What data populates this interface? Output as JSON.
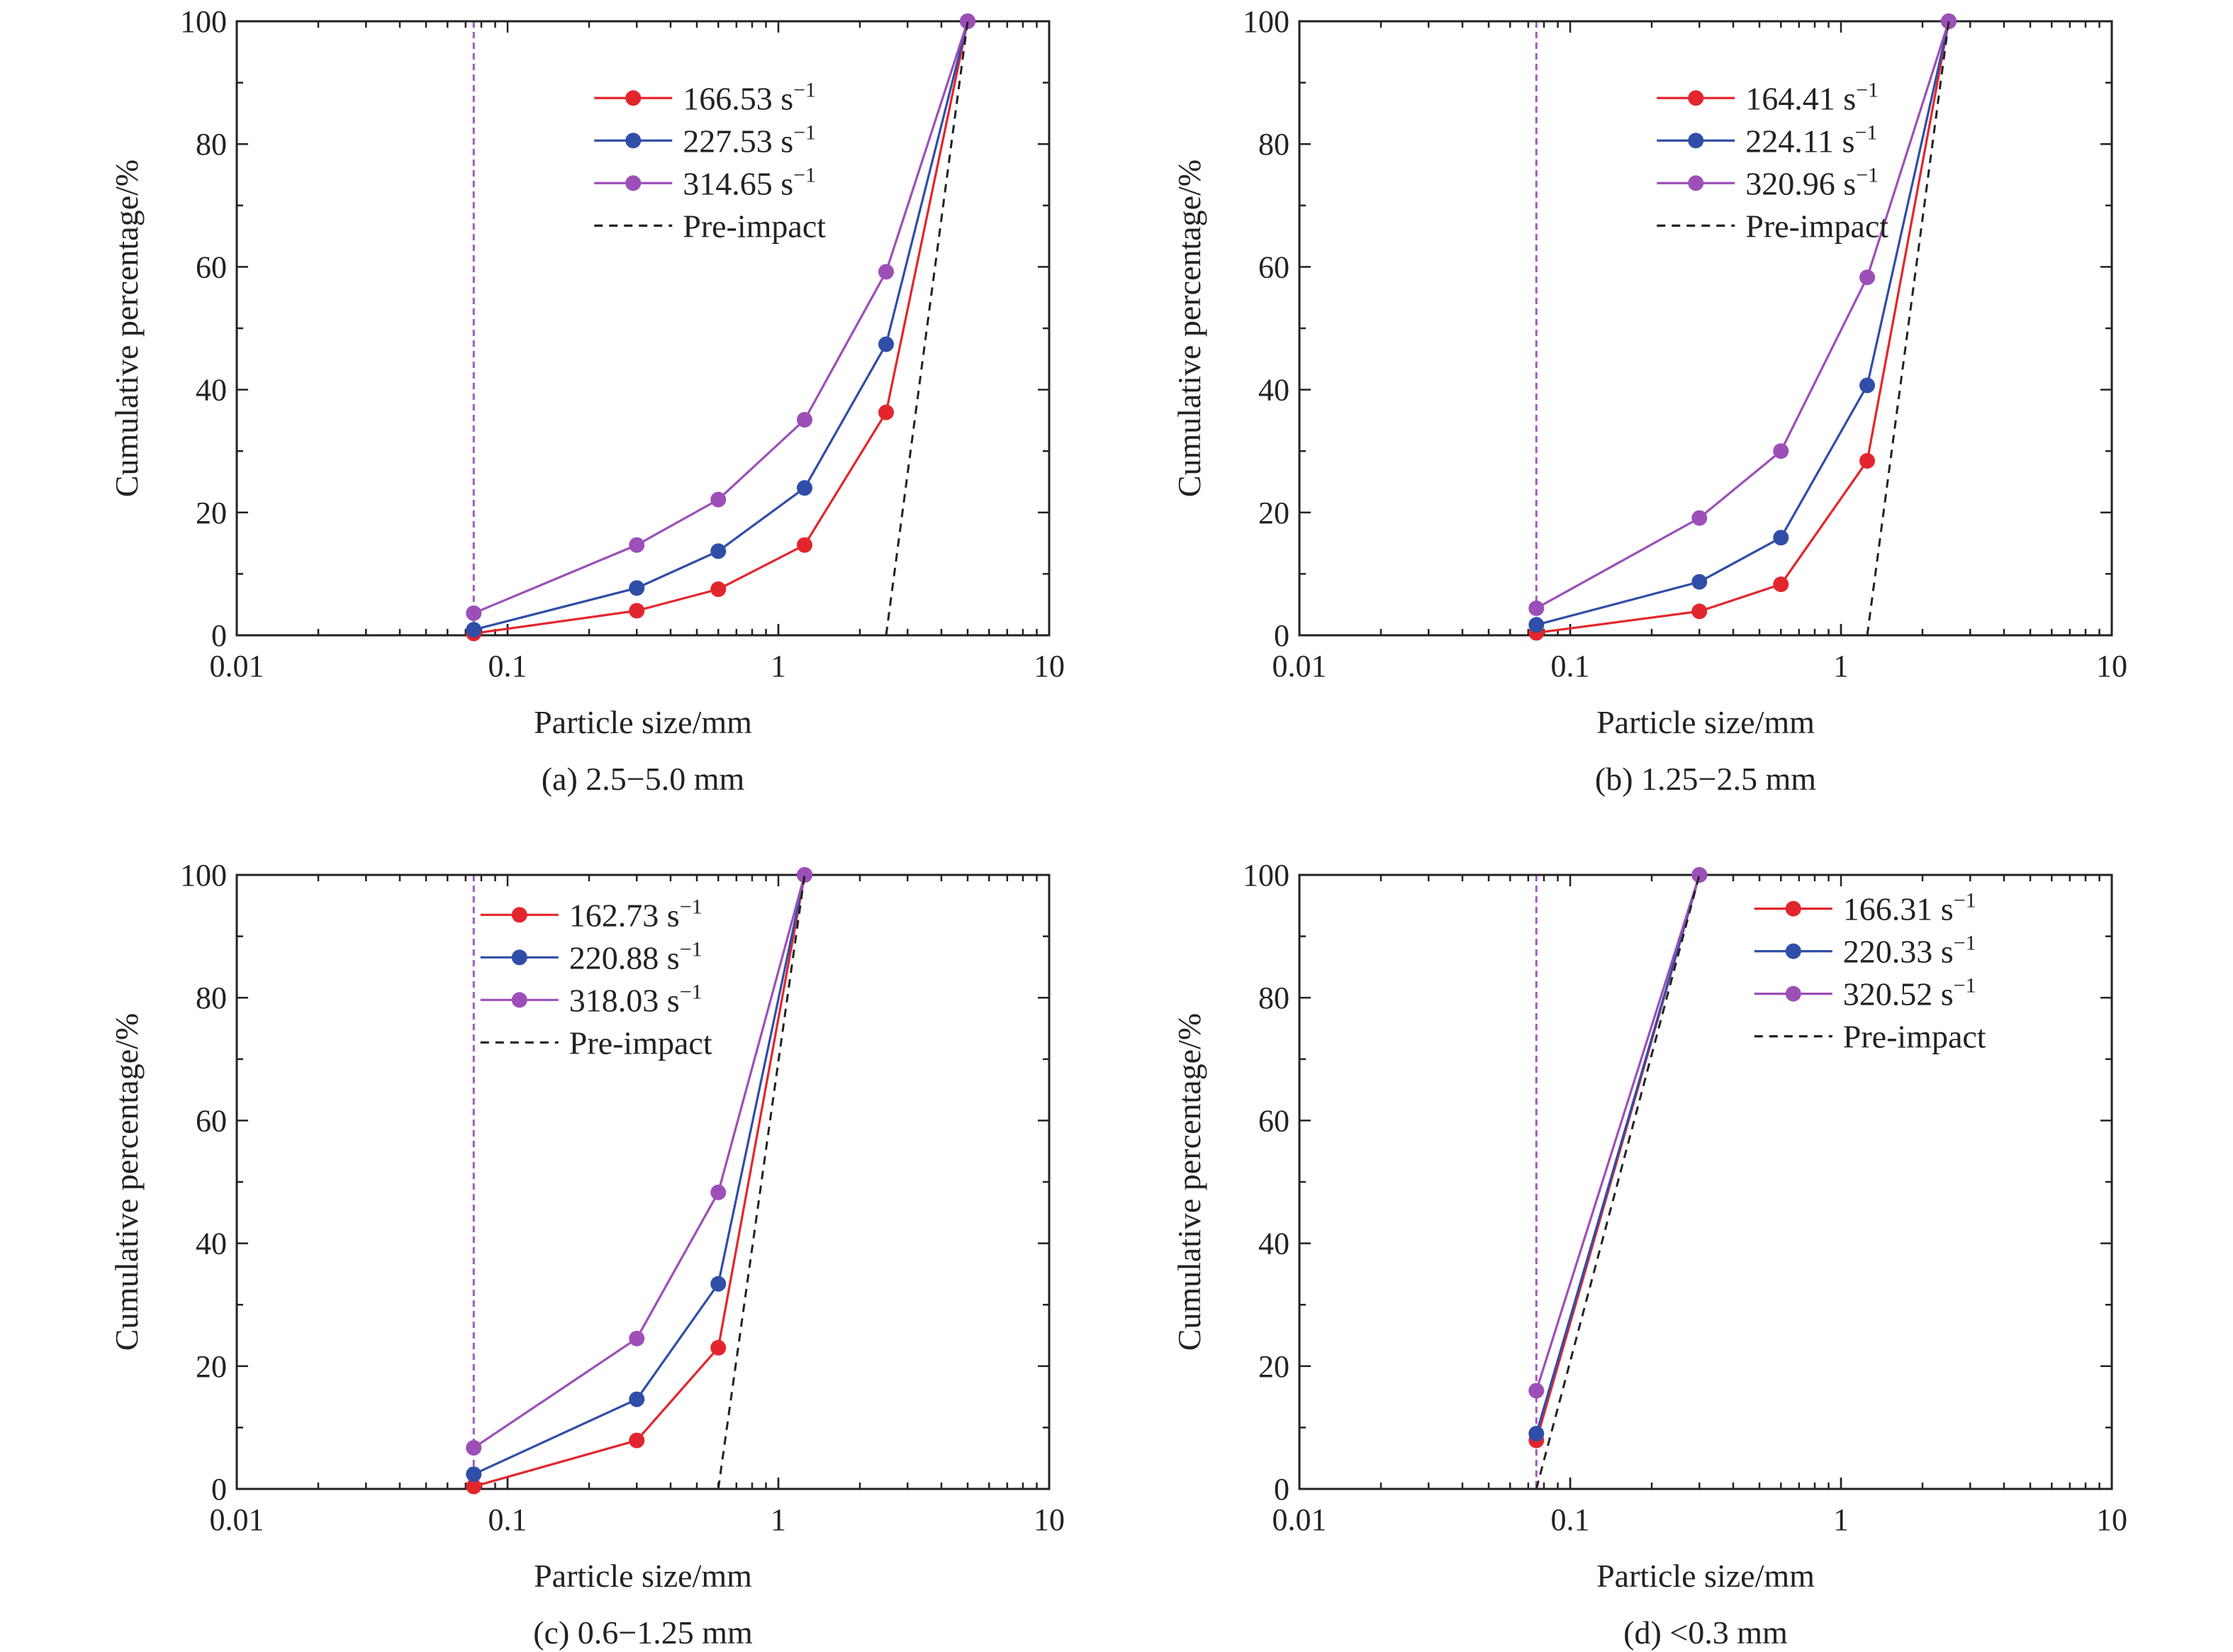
{
  "colors": {
    "red": "#e3262d",
    "blue": "#2f4ea8",
    "purple": "#9d4fb8",
    "preimpact": "#222222",
    "guide": "#a757c5",
    "axis": "#222222"
  },
  "chart_data": [
    {
      "type": "line",
      "caption": "(a) 2.5−5.0 mm",
      "xlabel": "Particle size/mm",
      "ylabel": "Cumulative percentage/%",
      "xscale": "log",
      "xlim": [
        0.01,
        10
      ],
      "ylim": [
        0,
        100
      ],
      "xticks": [
        "0.01",
        "0.1",
        "1",
        "10"
      ],
      "yticks": [
        "0",
        "20",
        "40",
        "60",
        "80",
        "100"
      ],
      "legend_position": "top-center",
      "series": [
        {
          "name": "166.53 s",
          "unit_exp": "−1",
          "color": "red",
          "x": [
            0.075,
            0.3,
            0.6,
            1.25,
            2.5,
            5.0
          ],
          "y": [
            0.3,
            4,
            7.5,
            14.7,
            36.3,
            100
          ]
        },
        {
          "name": "227.53 s",
          "unit_exp": "−1",
          "color": "blue",
          "x": [
            0.075,
            0.3,
            0.6,
            1.25,
            2.5,
            5.0
          ],
          "y": [
            0.9,
            7.7,
            13.7,
            24,
            47.4,
            100
          ]
        },
        {
          "name": "314.65 s",
          "unit_exp": "−1",
          "color": "purple",
          "x": [
            0.075,
            0.3,
            0.6,
            1.25,
            2.5,
            5.0
          ],
          "y": [
            3.6,
            14.7,
            22.1,
            35.1,
            59.2,
            100
          ]
        },
        {
          "name": "Pre-impact",
          "color": "preimpact",
          "dashed": true,
          "x": [
            2.5,
            5.0
          ],
          "y": [
            0,
            100
          ]
        }
      ],
      "guide_lines_x": [
        0.01,
        0.075
      ]
    },
    {
      "type": "line",
      "caption": "(b) 1.25−2.5 mm",
      "xlabel": "Particle size/mm",
      "ylabel": "Cumulative percentage/%",
      "xscale": "log",
      "xlim": [
        0.01,
        10
      ],
      "ylim": [
        0,
        100
      ],
      "xticks": [
        "0.01",
        "0.1",
        "1",
        "10"
      ],
      "yticks": [
        "0",
        "20",
        "40",
        "60",
        "80",
        "100"
      ],
      "legend_position": "top-center",
      "series": [
        {
          "name": "164.41 s",
          "unit_exp": "−1",
          "color": "red",
          "x": [
            0.075,
            0.3,
            0.6,
            1.25,
            2.5
          ],
          "y": [
            0.4,
            3.9,
            8.3,
            28.4,
            100
          ]
        },
        {
          "name": "224.11 s",
          "unit_exp": "−1",
          "color": "blue",
          "x": [
            0.075,
            0.3,
            0.6,
            1.25,
            2.5
          ],
          "y": [
            1.7,
            8.7,
            15.9,
            40.7,
            100
          ]
        },
        {
          "name": "320.96 s",
          "unit_exp": "−1",
          "color": "purple",
          "x": [
            0.075,
            0.3,
            0.6,
            1.25,
            2.5
          ],
          "y": [
            4.4,
            19.1,
            30,
            58.3,
            100
          ]
        },
        {
          "name": "Pre-impact",
          "color": "preimpact",
          "dashed": true,
          "x": [
            1.25,
            2.5
          ],
          "y": [
            0,
            100
          ]
        }
      ],
      "guide_lines_x": [
        0.01,
        0.075
      ]
    },
    {
      "type": "line",
      "caption": "(c) 0.6−1.25 mm",
      "xlabel": "Particle size/mm",
      "ylabel": "Cumulative percentage/%",
      "xscale": "log",
      "xlim": [
        0.01,
        10
      ],
      "ylim": [
        0,
        100
      ],
      "xticks": [
        "0.01",
        "0.1",
        "1",
        "10"
      ],
      "yticks": [
        "0",
        "20",
        "40",
        "60",
        "80",
        "100"
      ],
      "legend_position": "top-left",
      "series": [
        {
          "name": "162.73 s",
          "unit_exp": "−1",
          "color": "red",
          "x": [
            0.075,
            0.3,
            0.6,
            1.25
          ],
          "y": [
            0.4,
            7.9,
            23,
            100
          ]
        },
        {
          "name": "220.88 s",
          "unit_exp": "−1",
          "color": "blue",
          "x": [
            0.075,
            0.3,
            0.6,
            1.25
          ],
          "y": [
            2.4,
            14.6,
            33.4,
            100
          ]
        },
        {
          "name": "318.03 s",
          "unit_exp": "−1",
          "color": "purple",
          "x": [
            0.075,
            0.3,
            0.6,
            1.25
          ],
          "y": [
            6.7,
            24.5,
            48.3,
            100
          ]
        },
        {
          "name": "Pre-impact",
          "color": "preimpact",
          "dashed": true,
          "x": [
            0.6,
            1.25
          ],
          "y": [
            0,
            100
          ]
        }
      ],
      "guide_lines_x": [
        0.01,
        0.075
      ]
    },
    {
      "type": "line",
      "caption": "(d) <0.3 mm",
      "xlabel": "Particle size/mm",
      "ylabel": "Cumulative percentage/%",
      "xscale": "log",
      "xlim": [
        0.01,
        10
      ],
      "ylim": [
        0,
        100
      ],
      "xticks": [
        "0.01",
        "0.1",
        "1",
        "10"
      ],
      "yticks": [
        "0",
        "20",
        "40",
        "60",
        "80",
        "100"
      ],
      "legend_position": "top-right",
      "series": [
        {
          "name": "166.31 s",
          "unit_exp": "−1",
          "color": "red",
          "x": [
            0.075,
            0.3
          ],
          "y": [
            7.9,
            100
          ]
        },
        {
          "name": "220.33 s",
          "unit_exp": "−1",
          "color": "blue",
          "x": [
            0.075,
            0.3
          ],
          "y": [
            9,
            100
          ]
        },
        {
          "name": "320.52 s",
          "unit_exp": "−1",
          "color": "purple",
          "x": [
            0.075,
            0.3
          ],
          "y": [
            16,
            100
          ]
        },
        {
          "name": "Pre-impact",
          "color": "preimpact",
          "dashed": true,
          "x": [
            0.075,
            0.3
          ],
          "y": [
            0,
            100
          ]
        }
      ],
      "guide_lines_x": [
        0.01,
        0.075
      ]
    }
  ]
}
